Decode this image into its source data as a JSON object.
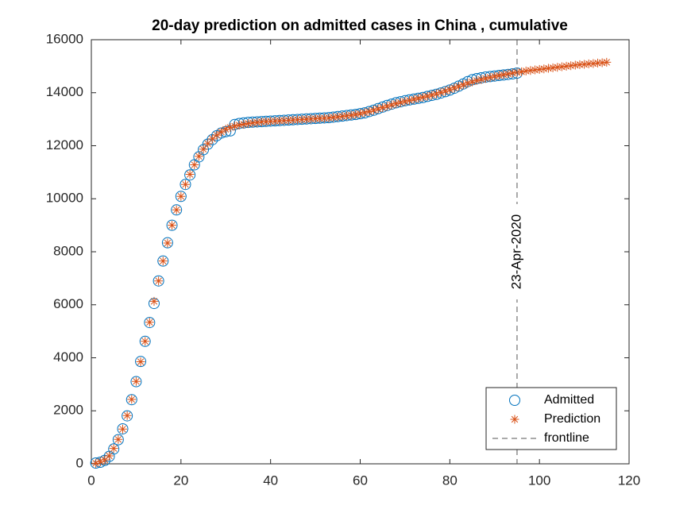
{
  "chart_data": {
    "type": "scatter",
    "title": "20-day prediction on admitted cases in China , cumulative",
    "x": [
      1,
      2,
      3,
      4,
      5,
      6,
      7,
      8,
      9,
      10,
      11,
      12,
      13,
      14,
      15,
      16,
      17,
      18,
      19,
      20,
      21,
      22,
      23,
      24,
      25,
      26,
      27,
      28,
      29,
      30,
      31,
      32,
      33,
      34,
      35,
      36,
      37,
      38,
      39,
      40,
      41,
      42,
      43,
      44,
      45,
      46,
      47,
      48,
      49,
      50,
      51,
      52,
      53,
      54,
      55,
      56,
      57,
      58,
      59,
      60,
      61,
      62,
      63,
      64,
      65,
      66,
      67,
      68,
      69,
      70,
      71,
      72,
      73,
      74,
      75,
      76,
      77,
      78,
      79,
      80,
      81,
      82,
      83,
      84,
      85,
      86,
      87,
      88,
      89,
      90,
      91,
      92,
      93,
      94,
      95,
      96,
      97,
      98,
      99,
      100,
      101,
      102,
      103,
      104,
      105,
      106,
      107,
      108,
      109,
      110,
      111,
      112,
      113,
      114,
      115
    ],
    "series": [
      {
        "name": "Admitted",
        "color": "#0072bd",
        "marker": "circle",
        "values": [
          30,
          60,
          130,
          280,
          560,
          910,
          1320,
          1810,
          2420,
          3100,
          3860,
          4620,
          5330,
          6050,
          6900,
          7650,
          8340,
          9000,
          9580,
          10090,
          10540,
          10900,
          11280,
          11580,
          11850,
          12060,
          12230,
          12380,
          12480,
          12530,
          12560,
          12800,
          12840,
          12860,
          12880,
          12890,
          12900,
          12910,
          12920,
          12930,
          12940,
          12950,
          12960,
          12970,
          12980,
          12990,
          13000,
          13010,
          13020,
          13030,
          13040,
          13050,
          13060,
          13080,
          13100,
          13120,
          13140,
          13160,
          13180,
          13210,
          13240,
          13290,
          13340,
          13400,
          13460,
          13520,
          13570,
          13620,
          13660,
          13700,
          13730,
          13760,
          13790,
          13820,
          13860,
          13900,
          13940,
          13990,
          14040,
          14100,
          14170,
          14250,
          14330,
          14420,
          14490,
          14530,
          14560,
          14590,
          14610,
          14630,
          14650,
          14670,
          14690,
          14710,
          14740,
          null,
          null,
          null,
          null,
          null,
          null,
          null,
          null,
          null,
          null,
          null,
          null,
          null,
          null,
          null,
          null,
          null,
          null,
          null,
          null
        ]
      },
      {
        "name": "Prediction",
        "color": "#d95319",
        "marker": "asterisk",
        "values": [
          20,
          80,
          150,
          300,
          580,
          920,
          1310,
          1820,
          2430,
          3110,
          3850,
          4620,
          5340,
          6130,
          6900,
          7650,
          8330,
          9000,
          9580,
          10090,
          10540,
          10920,
          11280,
          11600,
          11870,
          12080,
          12260,
          12400,
          12520,
          12620,
          12690,
          12740,
          12780,
          12810,
          12840,
          12860,
          12880,
          12900,
          12910,
          12920,
          12930,
          12940,
          12950,
          12960,
          12970,
          12980,
          12990,
          13000,
          13010,
          13020,
          13030,
          13040,
          13050,
          13070,
          13090,
          13110,
          13130,
          13150,
          13180,
          13210,
          13250,
          13290,
          13340,
          13390,
          13440,
          13490,
          13540,
          13590,
          13630,
          13670,
          13710,
          13750,
          13790,
          13830,
          13870,
          13910,
          13960,
          14010,
          14060,
          14120,
          14180,
          14240,
          14300,
          14360,
          14410,
          14460,
          14500,
          14540,
          14580,
          14620,
          14650,
          14680,
          14710,
          14740,
          14770,
          14790,
          14820,
          14840,
          14860,
          14880,
          14900,
          14920,
          14940,
          14960,
          14980,
          15000,
          15020,
          15040,
          15060,
          15070,
          15090,
          15100,
          15120,
          15130,
          15150
        ]
      }
    ],
    "vline": {
      "name": "frontline",
      "x": 95,
      "label": "23-Apr-2020",
      "color": "#555555"
    },
    "xlim": [
      0,
      120
    ],
    "xticks": [
      0,
      20,
      40,
      60,
      80,
      100,
      120
    ],
    "ylim": [
      0,
      16000
    ],
    "yticks": [
      0,
      2000,
      4000,
      6000,
      8000,
      10000,
      12000,
      14000,
      16000
    ],
    "legend": "southeast"
  }
}
